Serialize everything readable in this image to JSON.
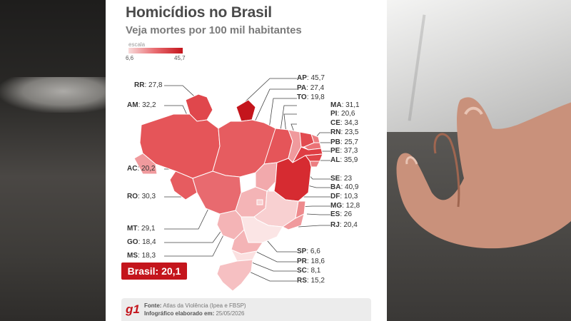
{
  "title": "Homicídios no Brasil",
  "subtitle": "Veja mortes por 100 mil habitantes",
  "scale": {
    "label": "escala",
    "min": "6,6",
    "max": "45,7"
  },
  "colors": {
    "accent": "#c4151c",
    "light": "#f8dada",
    "mid": "#e86a6f"
  },
  "states": [
    {
      "uf": "RR",
      "value": "27,8"
    },
    {
      "uf": "AM",
      "value": "32,2"
    },
    {
      "uf": "AC",
      "value": "20,2"
    },
    {
      "uf": "RO",
      "value": "30,3"
    },
    {
      "uf": "MT",
      "value": "29,1"
    },
    {
      "uf": "GO",
      "value": "18,4"
    },
    {
      "uf": "MS",
      "value": "18,3"
    },
    {
      "uf": "AP",
      "value": "45,7"
    },
    {
      "uf": "PA",
      "value": "27,4"
    },
    {
      "uf": "TO",
      "value": "19,8"
    },
    {
      "uf": "MA",
      "value": "31,1"
    },
    {
      "uf": "PI",
      "value": "20,6"
    },
    {
      "uf": "CE",
      "value": "34,3"
    },
    {
      "uf": "RN",
      "value": "23,5"
    },
    {
      "uf": "PB",
      "value": "25,7"
    },
    {
      "uf": "PE",
      "value": "37,3"
    },
    {
      "uf": "AL",
      "value": "35,9"
    },
    {
      "uf": "SE",
      "value": "23"
    },
    {
      "uf": "BA",
      "value": "40,9"
    },
    {
      "uf": "DF",
      "value": "10,3"
    },
    {
      "uf": "MG",
      "value": "12,8"
    },
    {
      "uf": "ES",
      "value": "26"
    },
    {
      "uf": "RJ",
      "value": "20,4"
    },
    {
      "uf": "SP",
      "value": "6,6"
    },
    {
      "uf": "PR",
      "value": "18,6"
    },
    {
      "uf": "SC",
      "value": "8,1"
    },
    {
      "uf": "RS",
      "value": "15,2"
    }
  ],
  "national": "Brasil: 20,1",
  "footer": {
    "logo": "g1",
    "source_label": "Fonte:",
    "source": "Atlas da Violência (Ipea e FBSP)",
    "made_label": "Infográfico elaborado em:",
    "made": "25/05/2026"
  }
}
